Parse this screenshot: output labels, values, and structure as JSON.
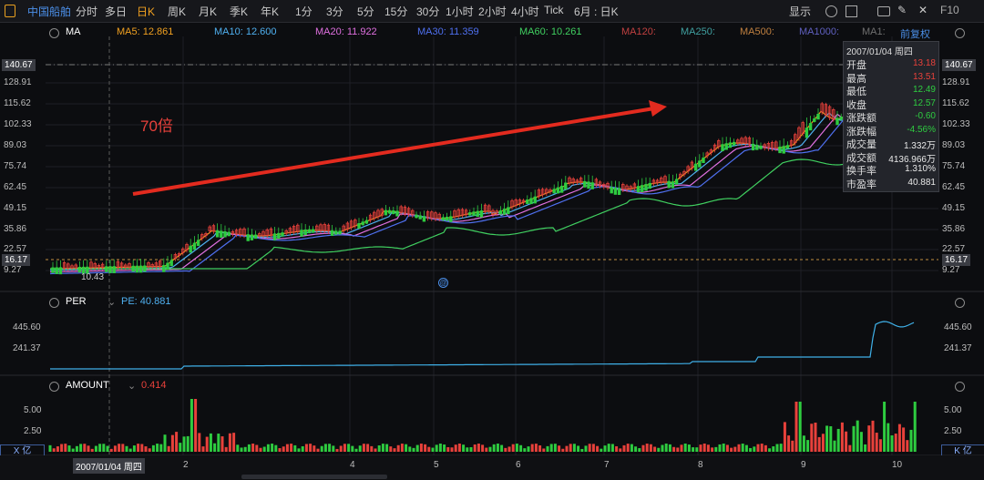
{
  "toolbar": {
    "stock_name": "中国船舶",
    "periods": [
      "分时",
      "多日",
      "日K",
      "周K",
      "月K",
      "季K",
      "年K",
      "1分",
      "3分",
      "5分",
      "15分",
      "30分",
      "1小时",
      "2小时",
      "4小时",
      "Tick"
    ],
    "active_period": "日K",
    "period_selector": "6月 : 日K",
    "display_label": "显示",
    "right_label": "F10"
  },
  "main": {
    "indicator": "MA",
    "ma": [
      {
        "label": "MA5: 12.861",
        "color": "#f0a020"
      },
      {
        "label": "MA10: 12.600",
        "color": "#4fb0f0"
      },
      {
        "label": "MA20: 11.922",
        "color": "#e070e0"
      },
      {
        "label": "MA30: 11.359",
        "color": "#4f70f0"
      },
      {
        "label": "MA60: 10.261",
        "color": "#40d060"
      },
      {
        "label": "MA120:",
        "color": "#c04040"
      },
      {
        "label": "MA250:",
        "color": "#40a0a0"
      },
      {
        "label": "MA500:",
        "color": "#c08040"
      },
      {
        "label": "MA1000:",
        "color": "#6060c0"
      },
      {
        "label": "MA1:",
        "color": "#707070"
      }
    ],
    "adjust_label": "前复权",
    "y_ticks": [
      "140.67",
      "128.91",
      "115.62",
      "102.33",
      "89.03",
      "75.74",
      "62.45",
      "49.15",
      "35.86",
      "22.57",
      "16.17",
      "9.27"
    ],
    "highlight_high": "140.67",
    "highlight_low": "16.17",
    "low_label": "10.43",
    "annotation": "70倍"
  },
  "info": {
    "date": "2007/01/04 周四",
    "rows": [
      {
        "k": "开盘",
        "v": "13.18",
        "c": "red"
      },
      {
        "k": "最高",
        "v": "13.51",
        "c": "red"
      },
      {
        "k": "最低",
        "v": "12.49",
        "c": "green"
      },
      {
        "k": "收盘",
        "v": "12.57",
        "c": "green"
      },
      {
        "k": "涨跌额",
        "v": "-0.60",
        "c": "green"
      },
      {
        "k": "涨跌幅",
        "v": "-4.56%",
        "c": "green"
      },
      {
        "k": "成交量",
        "v": "1.332万",
        "c": "white"
      },
      {
        "k": "成交额",
        "v": "4136.966万",
        "c": "white"
      },
      {
        "k": "换手率",
        "v": "1.310%",
        "c": "white"
      },
      {
        "k": "市盈率",
        "v": "40.881",
        "c": "white"
      }
    ]
  },
  "per": {
    "indicator": "PER",
    "value_label": "PE: 40.881",
    "y_ticks": [
      "445.60",
      "241.37"
    ]
  },
  "amount": {
    "indicator": "AMOUNT",
    "value_label": "0.414",
    "y_ticks": [
      "5.00",
      "2.50"
    ],
    "unit_left": "X 亿",
    "unit_right": "K 亿"
  },
  "date_axis": {
    "cursor_date": "2007/01/04 周四",
    "months": [
      "2",
      "4",
      "5",
      "6",
      "7",
      "8",
      "9",
      "10"
    ]
  }
}
